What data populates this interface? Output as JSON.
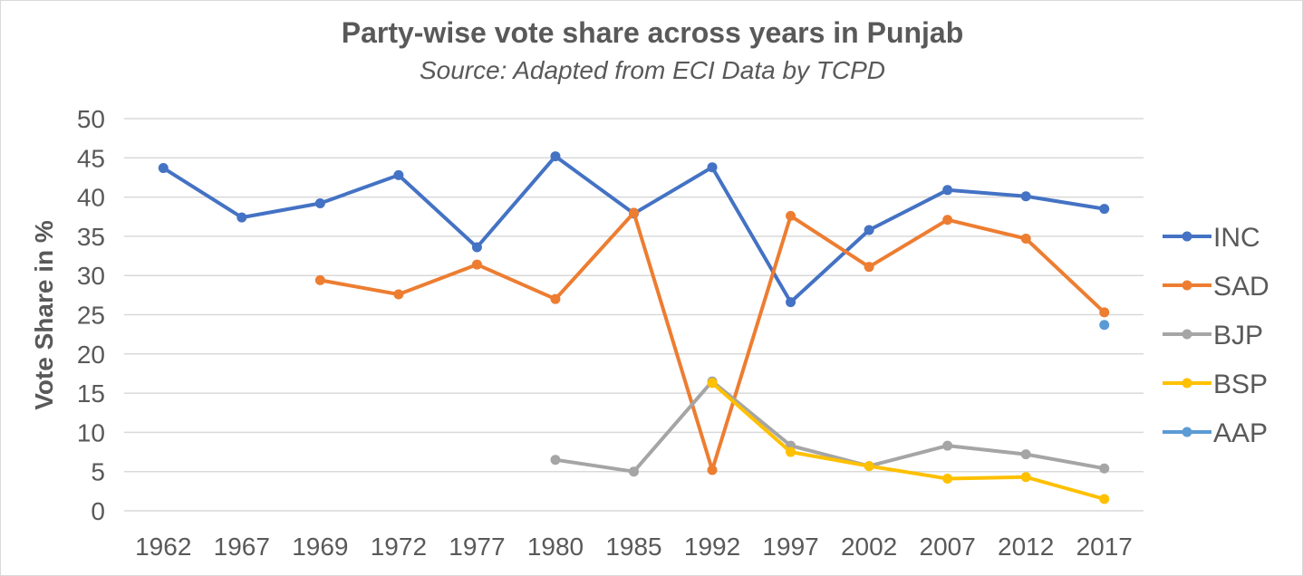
{
  "chart": {
    "title": "Party-wise vote share across years in Punjab",
    "subtitle": "Source: Adapted from ECI Data by TCPD"
  },
  "chart_data": {
    "type": "line",
    "title": "Party-wise vote share across years in Punjab",
    "subtitle": "Source: Adapted from ECI Data by TCPD",
    "xlabel": "",
    "ylabel": "Vote Share in %",
    "categories": [
      "1962",
      "1967",
      "1969",
      "1972",
      "1977",
      "1980",
      "1985",
      "1992",
      "1997",
      "2002",
      "2007",
      "2012",
      "2017"
    ],
    "ylim": [
      0,
      50
    ],
    "yticks": [
      0,
      5,
      10,
      15,
      20,
      25,
      30,
      35,
      40,
      45,
      50
    ],
    "grid": "horizontal",
    "legend": "right",
    "series": [
      {
        "name": "INC",
        "color": "#4472C4",
        "values": [
          43.7,
          37.4,
          39.2,
          42.8,
          33.6,
          45.2,
          37.9,
          43.8,
          26.6,
          35.8,
          40.9,
          40.1,
          38.5
        ]
      },
      {
        "name": "SAD",
        "color": "#ED7D31",
        "values": [
          null,
          null,
          29.4,
          27.6,
          31.4,
          27.0,
          38.0,
          5.2,
          37.6,
          31.1,
          37.1,
          34.7,
          25.3
        ]
      },
      {
        "name": "BJP",
        "color": "#A5A5A5",
        "values": [
          null,
          null,
          null,
          null,
          null,
          6.5,
          5.0,
          16.5,
          8.3,
          5.7,
          8.3,
          7.2,
          5.4
        ]
      },
      {
        "name": "BSP",
        "color": "#FFC000",
        "values": [
          null,
          null,
          null,
          null,
          null,
          null,
          null,
          16.3,
          7.5,
          5.7,
          4.1,
          4.3,
          1.5
        ]
      },
      {
        "name": "AAP",
        "color": "#5B9BD5",
        "values": [
          null,
          null,
          null,
          null,
          null,
          null,
          null,
          null,
          null,
          null,
          null,
          null,
          23.7
        ]
      }
    ]
  }
}
